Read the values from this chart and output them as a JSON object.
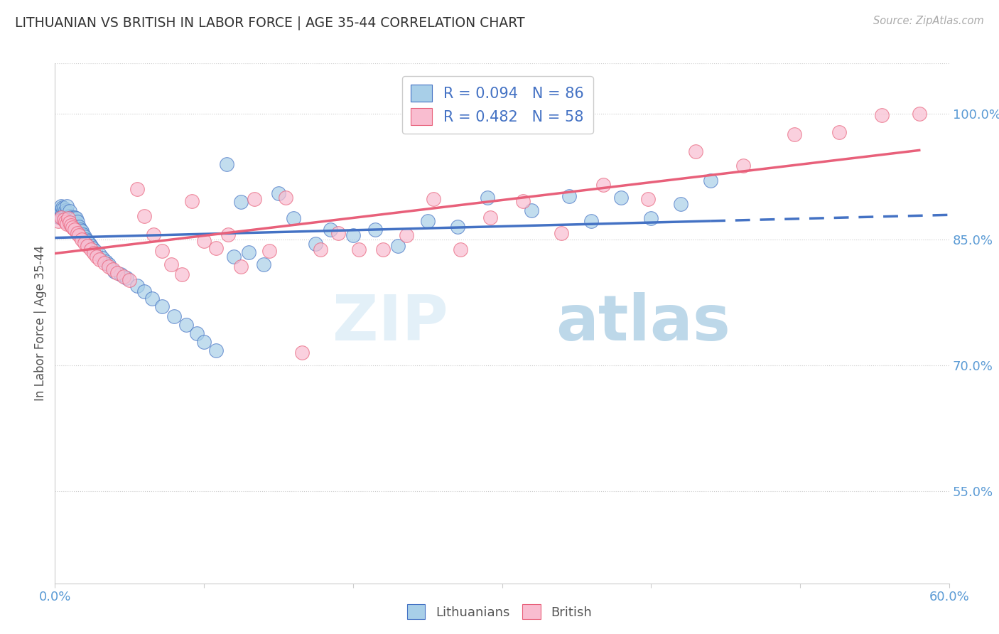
{
  "title": "LITHUANIAN VS BRITISH IN LABOR FORCE | AGE 35-44 CORRELATION CHART",
  "source": "Source: ZipAtlas.com",
  "ylabel": "In Labor Force | Age 35-44",
  "xlim": [
    0.0,
    0.6
  ],
  "ylim": [
    0.44,
    1.06
  ],
  "watermark_zip": "ZIP",
  "watermark_atlas": "atlas",
  "blue_color": "#a8cfe8",
  "pink_color": "#f9bdd0",
  "trend_blue": "#4472c4",
  "trend_pink": "#e8607a",
  "axis_color": "#5b9bd5",
  "grid_color": "#cccccc",
  "legend_r_blue": "R = 0.094",
  "legend_n_blue": "N = 86",
  "legend_r_pink": "R = 0.482",
  "legend_n_pink": "N = 58",
  "lit_points_x": [
    0.001,
    0.002,
    0.003,
    0.003,
    0.004,
    0.004,
    0.004,
    0.005,
    0.005,
    0.005,
    0.006,
    0.006,
    0.006,
    0.007,
    0.007,
    0.007,
    0.008,
    0.008,
    0.008,
    0.008,
    0.009,
    0.009,
    0.01,
    0.01,
    0.01,
    0.011,
    0.011,
    0.012,
    0.012,
    0.013,
    0.013,
    0.014,
    0.014,
    0.014,
    0.015,
    0.015,
    0.016,
    0.016,
    0.017,
    0.018,
    0.019,
    0.02,
    0.021,
    0.022,
    0.023,
    0.024,
    0.025,
    0.027,
    0.03,
    0.032,
    0.034,
    0.036,
    0.04,
    0.044,
    0.048,
    0.055,
    0.06,
    0.065,
    0.072,
    0.08,
    0.088,
    0.095,
    0.1,
    0.108,
    0.115,
    0.12,
    0.125,
    0.13,
    0.14,
    0.15,
    0.16,
    0.175,
    0.185,
    0.2,
    0.215,
    0.23,
    0.25,
    0.27,
    0.29,
    0.32,
    0.345,
    0.36,
    0.38,
    0.4,
    0.42,
    0.44
  ],
  "lit_points_y": [
    0.878,
    0.882,
    0.876,
    0.884,
    0.878,
    0.885,
    0.89,
    0.875,
    0.882,
    0.888,
    0.874,
    0.88,
    0.887,
    0.873,
    0.879,
    0.885,
    0.872,
    0.878,
    0.883,
    0.89,
    0.87,
    0.876,
    0.872,
    0.878,
    0.884,
    0.87,
    0.876,
    0.868,
    0.875,
    0.87,
    0.876,
    0.862,
    0.869,
    0.875,
    0.864,
    0.871,
    0.858,
    0.865,
    0.862,
    0.86,
    0.856,
    0.853,
    0.85,
    0.848,
    0.845,
    0.842,
    0.84,
    0.836,
    0.832,
    0.828,
    0.824,
    0.82,
    0.812,
    0.808,
    0.804,
    0.795,
    0.788,
    0.78,
    0.77,
    0.758,
    0.748,
    0.738,
    0.728,
    0.718,
    0.94,
    0.83,
    0.895,
    0.835,
    0.82,
    0.905,
    0.875,
    0.845,
    0.862,
    0.855,
    0.862,
    0.842,
    0.872,
    0.865,
    0.9,
    0.885,
    0.902,
    0.872,
    0.9,
    0.875,
    0.892,
    0.92
  ],
  "brit_points_x": [
    0.002,
    0.004,
    0.006,
    0.007,
    0.008,
    0.009,
    0.01,
    0.011,
    0.012,
    0.013,
    0.015,
    0.016,
    0.018,
    0.02,
    0.022,
    0.024,
    0.026,
    0.028,
    0.03,
    0.033,
    0.036,
    0.039,
    0.042,
    0.046,
    0.05,
    0.055,
    0.06,
    0.066,
    0.072,
    0.078,
    0.085,
    0.092,
    0.1,
    0.108,
    0.116,
    0.125,
    0.134,
    0.144,
    0.155,
    0.166,
    0.178,
    0.19,
    0.204,
    0.22,
    0.236,
    0.254,
    0.272,
    0.292,
    0.314,
    0.34,
    0.368,
    0.398,
    0.43,
    0.462,
    0.496,
    0.526,
    0.555,
    0.58
  ],
  "brit_points_y": [
    0.872,
    0.876,
    0.874,
    0.871,
    0.869,
    0.875,
    0.87,
    0.867,
    0.864,
    0.862,
    0.858,
    0.855,
    0.85,
    0.846,
    0.842,
    0.838,
    0.834,
    0.83,
    0.826,
    0.822,
    0.818,
    0.814,
    0.81,
    0.806,
    0.802,
    0.91,
    0.878,
    0.856,
    0.836,
    0.82,
    0.808,
    0.896,
    0.848,
    0.84,
    0.856,
    0.818,
    0.898,
    0.836,
    0.9,
    0.715,
    0.838,
    0.858,
    0.838,
    0.838,
    0.855,
    0.898,
    0.838,
    0.876,
    0.896,
    0.858,
    0.915,
    0.898,
    0.955,
    0.938,
    0.975,
    0.978,
    0.998,
    1.0
  ]
}
